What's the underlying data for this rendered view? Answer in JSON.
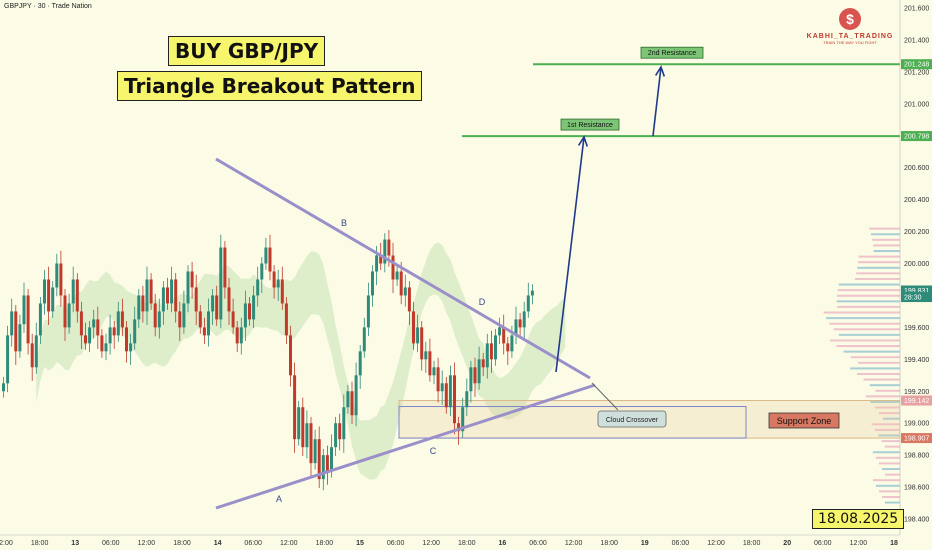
{
  "header": {
    "symbol_line": "GBPJPY · 30 · Trade Nation"
  },
  "annotations": {
    "title1": "BUY GBP/JPY",
    "title2": "Triangle Breakout Pattern",
    "date": "18.08.2025",
    "res1": "1st Resistance",
    "res2": "2nd Resistance",
    "cloud": "Cloud Crossover",
    "support": "Support Zone",
    "points": [
      "A",
      "B",
      "C",
      "D"
    ]
  },
  "logo": {
    "name": "KABHI_TA_TRADING",
    "tagline": "TRAIN THE WAY YOU FIGHT"
  },
  "colors": {
    "background": "#fbfbe6",
    "bull": "#2e8b7a",
    "bear": "#c0392b",
    "trendline": "#9b8fc9",
    "resistance": "#4caf50",
    "arrow": "#1f3a8a",
    "support_zone": "#d97862",
    "accent": "#f7f56b"
  },
  "chart_data": {
    "type": "candlestick",
    "instrument": "GBPJPY",
    "timeframe": "30",
    "ylim": [
      198.3,
      201.65
    ],
    "yticks": [
      "201.600",
      "201.400",
      "201.200",
      "201.000",
      "200.800",
      "200.600",
      "200.400",
      "200.200",
      "200.000",
      "199.800",
      "199.600",
      "199.400",
      "199.200",
      "199.000",
      "198.800",
      "198.600",
      "198.400"
    ],
    "xticks": [
      "12:00",
      "18:00",
      "13",
      "06:00",
      "12:00",
      "18:00",
      "14",
      "06:00",
      "12:00",
      "18:00",
      "15",
      "06:00",
      "12:00",
      "18:00",
      "16",
      "06:00",
      "12:00",
      "18:00",
      "19",
      "06:00",
      "12:00",
      "18:00",
      "20",
      "06:00",
      "12:00",
      "18"
    ],
    "price_labels": [
      {
        "value": 201.248,
        "label": "201.248",
        "color": "#4caf50"
      },
      {
        "value": 200.798,
        "label": "200.798",
        "color": "#4caf50"
      },
      {
        "value": 199.831,
        "label": "199.831",
        "color": "#2e8b7a"
      },
      {
        "value": 199.79,
        "label": "28:30",
        "color": "#2e8b7a"
      },
      {
        "value": 199.142,
        "label": "199.142",
        "color": "#e8a0a0"
      },
      {
        "value": 198.907,
        "label": "198.907",
        "color": "#d97862"
      }
    ],
    "resistance_levels": [
      {
        "name": "1st Resistance",
        "value": 200.798
      },
      {
        "name": "2nd Resistance",
        "value": 201.248
      }
    ],
    "support_zone": {
      "name": "Support Zone",
      "low": 198.907,
      "high": 199.142
    },
    "pattern_points": [
      {
        "label": "A",
        "price": 198.6
      },
      {
        "label": "B",
        "price": 200.15
      },
      {
        "label": "C",
        "price": 198.92
      },
      {
        "label": "D",
        "price": 199.72
      }
    ],
    "closes": [
      199.25,
      199.55,
      199.7,
      199.45,
      199.62,
      199.8,
      199.5,
      199.35,
      199.55,
      199.75,
      199.9,
      199.7,
      199.85,
      200.0,
      199.8,
      199.6,
      199.75,
      199.9,
      199.7,
      199.55,
      199.5,
      199.6,
      199.65,
      199.55,
      199.45,
      199.5,
      199.6,
      199.55,
      199.7,
      199.6,
      199.45,
      199.5,
      199.65,
      199.8,
      199.7,
      199.9,
      199.75,
      199.6,
      199.7,
      199.85,
      199.75,
      199.9,
      199.7,
      199.6,
      199.75,
      199.95,
      199.85,
      199.7,
      199.6,
      199.55,
      199.7,
      199.8,
      199.65,
      200.1,
      199.85,
      199.7,
      199.6,
      199.5,
      199.6,
      199.75,
      199.65,
      199.8,
      199.9,
      200.0,
      200.1,
      199.95,
      199.85,
      199.9,
      199.75,
      199.55,
      199.3,
      198.9,
      199.1,
      198.85,
      199.0,
      198.75,
      198.9,
      198.65,
      198.8,
      198.7,
      198.85,
      199.0,
      198.9,
      199.1,
      199.2,
      199.05,
      199.3,
      199.45,
      199.6,
      199.8,
      199.95,
      200.05,
      200.0,
      200.15,
      200.05,
      199.9,
      199.95,
      199.8,
      199.85,
      199.7,
      199.5,
      199.6,
      199.4,
      199.45,
      199.3,
      199.35,
      199.2,
      199.25,
      199.1,
      199.3,
      199.0,
      198.95,
      199.1,
      199.2,
      199.35,
      199.25,
      199.4,
      199.35,
      199.5,
      199.4,
      199.55,
      199.6,
      199.5,
      199.45,
      199.55,
      199.65,
      199.6,
      199.7,
      199.8,
      199.83
    ]
  }
}
